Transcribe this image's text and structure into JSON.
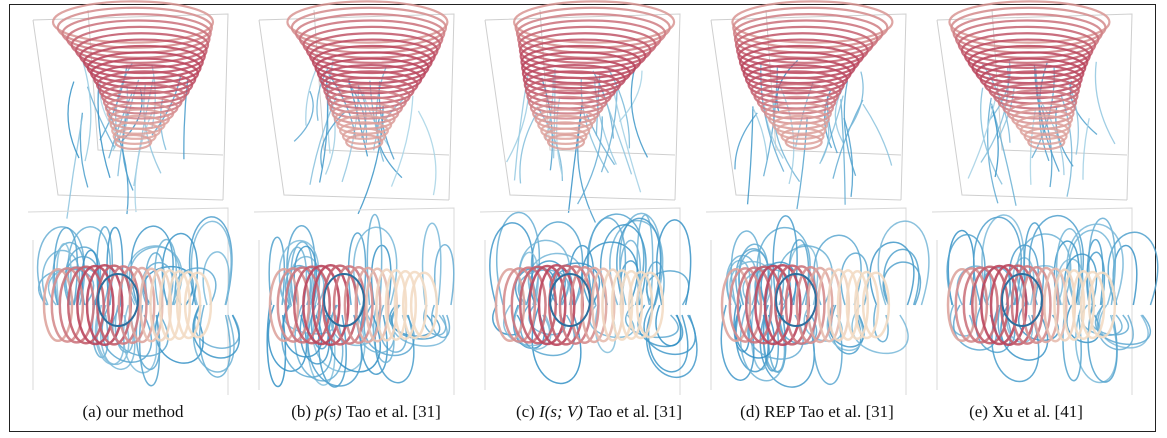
{
  "figure": {
    "panels": [
      {
        "label": "(a) our method"
      },
      {
        "label": "(b)",
        "math": "p(s)",
        "text": "Tao et al. [31]"
      },
      {
        "label": "(c)",
        "math": "I(s; V)",
        "text": "Tao et al. [31]"
      },
      {
        "label": "(d) REP Tao et al. [31]"
      },
      {
        "label": "(e) Xu et al. [41]"
      }
    ]
  }
}
